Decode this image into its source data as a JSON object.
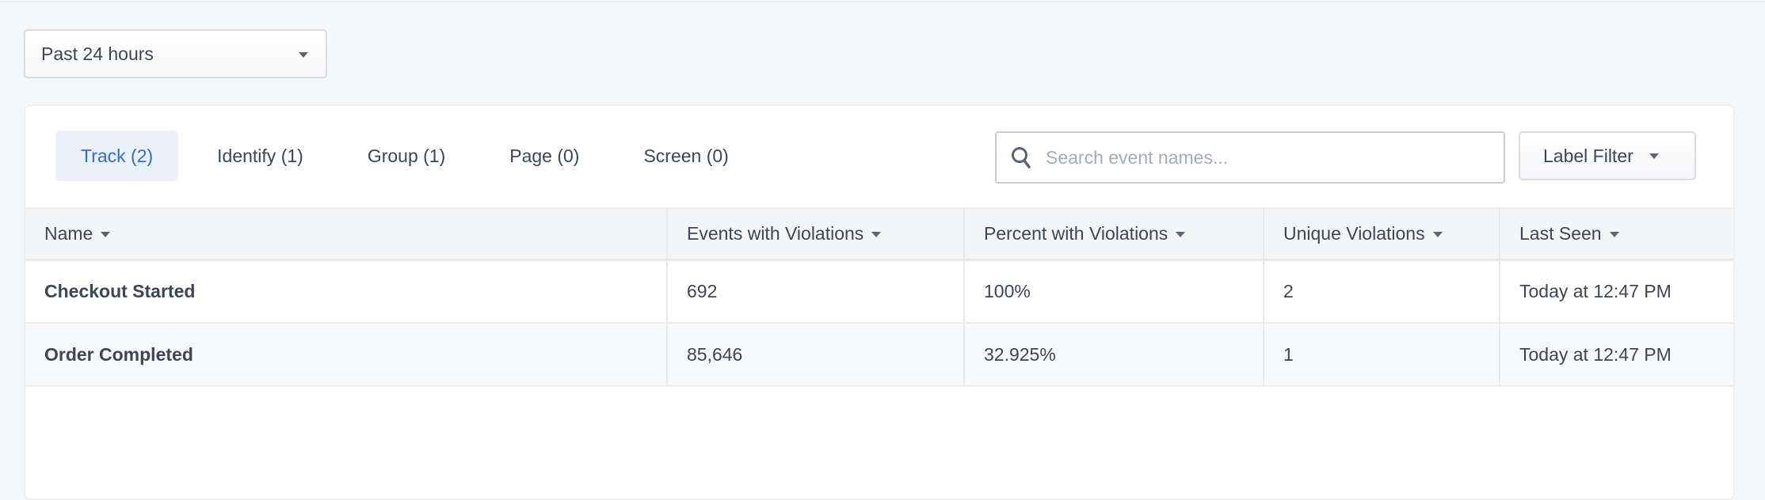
{
  "time_range": {
    "selected": "Past 24 hours"
  },
  "tabs": [
    {
      "label": "Track (2)",
      "active": true
    },
    {
      "label": "Identify (1)"
    },
    {
      "label": "Group (1)"
    },
    {
      "label": "Page (0)"
    },
    {
      "label": "Screen (0)"
    }
  ],
  "search": {
    "placeholder": "Search event names...",
    "value": ""
  },
  "label_filter": {
    "label": "Label Filter"
  },
  "table": {
    "columns": [
      "Name",
      "Events with Violations",
      "Percent with Violations",
      "Unique Violations",
      "Last Seen"
    ],
    "rows": [
      [
        "Checkout Started",
        "692",
        "100%",
        "2",
        "Today at 12:47 PM"
      ],
      [
        "Order Completed",
        "85,646",
        "32.925%",
        "1",
        "Today at 12:47 PM"
      ]
    ]
  },
  "colors": {
    "accent": "#2f6fc8",
    "active_tab_bg": "#ebf1fa",
    "text": "#3b4656"
  }
}
